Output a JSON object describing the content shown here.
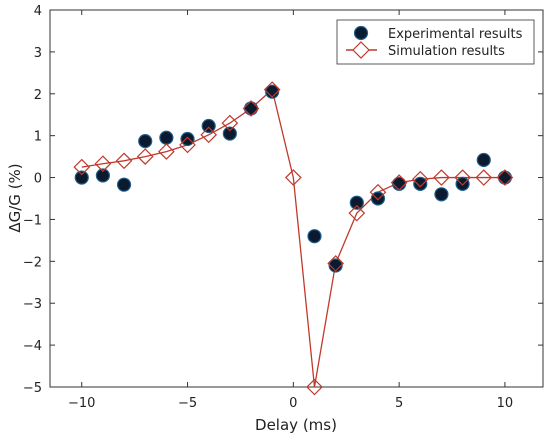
{
  "chart_data": {
    "type": "scatter",
    "xlabel": "Delay (ms)",
    "ylabel": "ΔG/G (%)",
    "xlim": [
      -11.5,
      11.8
    ],
    "ylim": [
      -5,
      4
    ],
    "xticks": [
      -10,
      -5,
      0,
      5,
      10
    ],
    "xtick_labels": [
      "−10",
      "−5",
      "0",
      "5",
      "10"
    ],
    "yticks": [
      -5,
      -4,
      -3,
      -2,
      -1,
      0,
      1,
      2,
      3,
      4
    ],
    "ytick_labels": [
      "−5",
      "−4",
      "−3",
      "−2",
      "−1",
      "0",
      "1",
      "2",
      "3",
      "4"
    ],
    "grid": false,
    "legend_position": "top-right",
    "series": [
      {
        "name": "Experimental results",
        "marker": "circle",
        "line": false,
        "color": "#0b1a2e",
        "edge_color": "#1f5f8b",
        "x": [
          -10,
          -9,
          -8,
          -7,
          -6,
          -5,
          -4,
          -3,
          -2,
          -1,
          1,
          2,
          3,
          4,
          5,
          6,
          7,
          8,
          9,
          10
        ],
        "y": [
          0.0,
          0.05,
          -0.17,
          0.87,
          0.95,
          0.92,
          1.23,
          1.05,
          1.65,
          2.05,
          -1.4,
          -2.1,
          -0.6,
          -0.5,
          -0.15,
          -0.15,
          -0.4,
          -0.15,
          0.42,
          0.0
        ]
      },
      {
        "name": "Simulation results",
        "marker": "diamond",
        "line": true,
        "color": "#c0392b",
        "x": [
          -10,
          -9,
          -8,
          -7,
          -6,
          -5,
          -4,
          -3,
          -2,
          -1,
          0,
          1,
          2,
          3,
          4,
          5,
          6,
          7,
          8,
          9,
          10
        ],
        "y": [
          0.25,
          0.33,
          0.4,
          0.5,
          0.62,
          0.78,
          1.02,
          1.3,
          1.65,
          2.1,
          0.0,
          -5.0,
          -2.05,
          -0.85,
          -0.35,
          -0.12,
          -0.04,
          0.0,
          0.0,
          0.0,
          0.0
        ]
      }
    ]
  }
}
